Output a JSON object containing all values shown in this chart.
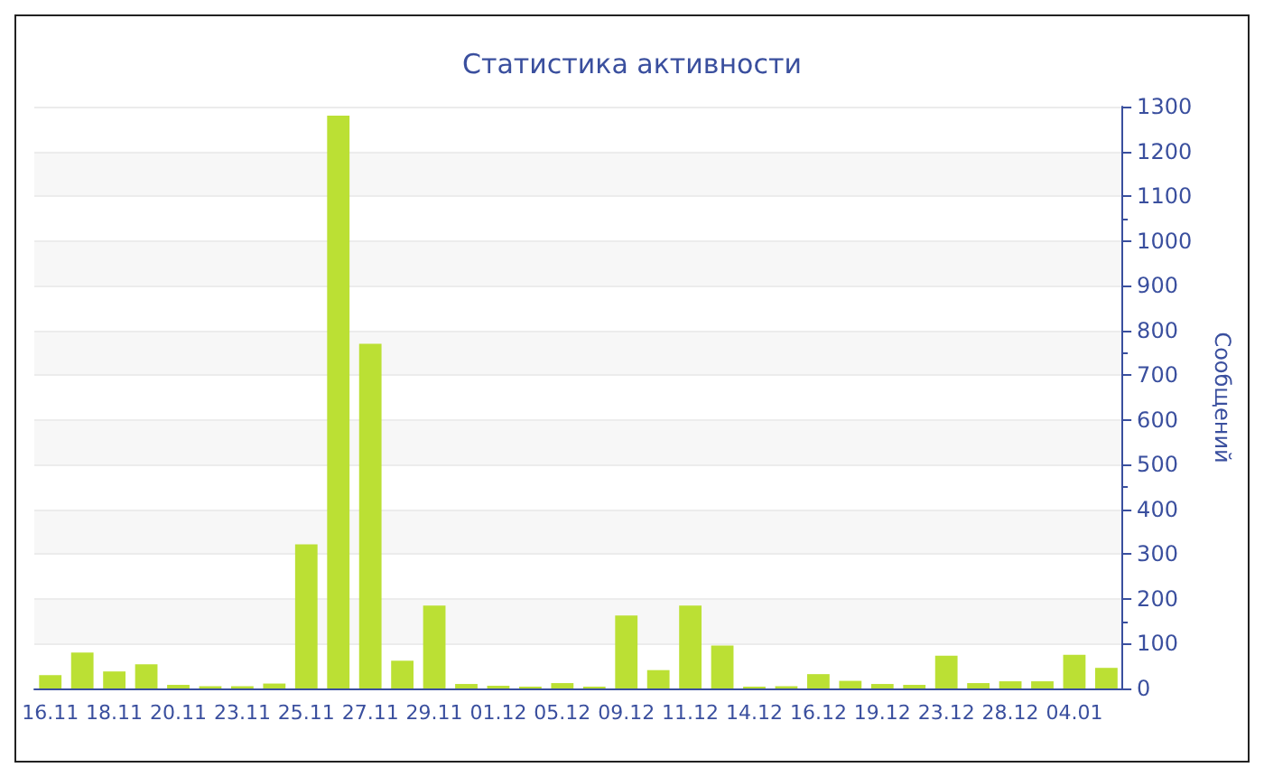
{
  "chart_data": {
    "type": "bar",
    "title": "Статистика активности",
    "ylabel": "Сообщений",
    "categories": [
      "16.11",
      null,
      "18.11",
      null,
      "20.11",
      null,
      "23.11",
      null,
      "25.11",
      null,
      "27.11",
      null,
      "29.11",
      null,
      "01.12",
      null,
      "05.12",
      null,
      "09.12",
      null,
      "11.12",
      null,
      "14.12",
      null,
      "16.12",
      null,
      "19.12",
      null,
      "23.12",
      null,
      "28.12",
      null,
      "04.01",
      null
    ],
    "values": [
      30,
      80,
      38,
      54,
      8,
      5,
      5,
      11,
      322,
      1280,
      770,
      62,
      185,
      10,
      6,
      4,
      12,
      4,
      163,
      41,
      185,
      96,
      4,
      5,
      32,
      17,
      10,
      8,
      73,
      12,
      16,
      16,
      75,
      46
    ],
    "color": "#bbe034",
    "ylim": [
      0,
      1300
    ],
    "yticks": [
      0,
      100,
      200,
      300,
      400,
      500,
      600,
      700,
      800,
      900,
      1000,
      1100,
      1200,
      1300
    ],
    "grid": "y"
  }
}
